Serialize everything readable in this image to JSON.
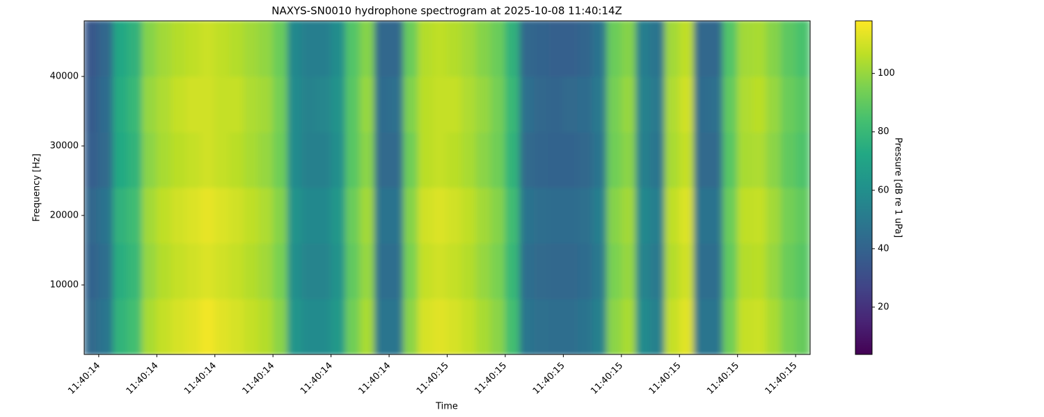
{
  "chart_data": {
    "type": "heatmap",
    "title": "NAXYS-SN0010 hydrophone spectrogram at 2025-10-08 11:40:14Z",
    "xlabel": "Time",
    "ylabel": "Frequency [Hz]",
    "colorbar_label": "Pressure [dB re 1 uPa]",
    "colormap": "viridis",
    "x": [
      14.375,
      14.4,
      14.425,
      14.45,
      14.475,
      14.5,
      14.525,
      14.55,
      14.575,
      14.6,
      14.625,
      14.65,
      14.675,
      14.7,
      14.725,
      14.75,
      14.775,
      14.8,
      14.825,
      14.85,
      14.875,
      14.9,
      14.925,
      14.95,
      14.975,
      15,
      15.025,
      15.05,
      15.075,
      15.1,
      15.125,
      15.15,
      15.175,
      15.2,
      15.225,
      15.25,
      15.275,
      15.3,
      15.325,
      15.35,
      15.375,
      15.4,
      15.425,
      15.45,
      15.475,
      15.5,
      15.525,
      15.55,
      15.575,
      15.6,
      15.625
    ],
    "y": [
      0,
      8000,
      16000,
      24000,
      32000,
      40000,
      48000
    ],
    "z": [
      [
        43,
        48,
        78,
        83,
        103,
        108,
        111,
        113,
        116,
        113,
        111,
        108,
        105,
        98,
        63,
        58,
        58,
        65,
        93,
        103,
        48,
        48,
        98,
        111,
        113,
        111,
        108,
        103,
        98,
        83,
        48,
        46,
        45,
        45,
        47,
        53,
        98,
        103,
        58,
        53,
        108,
        113,
        48,
        48,
        93,
        108,
        109,
        103,
        95,
        91
      ],
      [
        40,
        45,
        75,
        80,
        100,
        105,
        108,
        110,
        112,
        110,
        108,
        105,
        102,
        95,
        60,
        55,
        55,
        62,
        90,
        100,
        45,
        45,
        95,
        108,
        110,
        108,
        105,
        100,
        95,
        80,
        45,
        43,
        42,
        42,
        44,
        50,
        95,
        100,
        55,
        50,
        105,
        110,
        45,
        45,
        90,
        105,
        106,
        100,
        92,
        88
      ],
      [
        42,
        47,
        77,
        82,
        102,
        107,
        110,
        112,
        114,
        112,
        110,
        107,
        104,
        97,
        62,
        57,
        57,
        64,
        92,
        102,
        47,
        47,
        97,
        110,
        112,
        110,
        107,
        102,
        97,
        82,
        47,
        45,
        44,
        44,
        46,
        52,
        97,
        102,
        57,
        52,
        107,
        112,
        47,
        47,
        92,
        107,
        108,
        102,
        94,
        90
      ],
      [
        38,
        43,
        73,
        78,
        98,
        103,
        106,
        108,
        110,
        108,
        106,
        103,
        100,
        93,
        58,
        53,
        53,
        60,
        88,
        98,
        43,
        43,
        93,
        106,
        108,
        106,
        103,
        98,
        93,
        78,
        43,
        41,
        40,
        40,
        42,
        48,
        93,
        98,
        53,
        48,
        103,
        108,
        43,
        43,
        88,
        103,
        104,
        98,
        90,
        86
      ],
      [
        37,
        44,
        74,
        80,
        100,
        104,
        108,
        110,
        110,
        108,
        108,
        104,
        102,
        94,
        58,
        54,
        56,
        62,
        88,
        100,
        44,
        46,
        96,
        106,
        108,
        108,
        104,
        100,
        94,
        80,
        46,
        42,
        41,
        43,
        44,
        50,
        94,
        100,
        54,
        50,
        104,
        110,
        44,
        46,
        90,
        104,
        106,
        100,
        92,
        88
      ],
      [
        35,
        42,
        72,
        77,
        97,
        102,
        105,
        107,
        109,
        107,
        105,
        102,
        99,
        92,
        57,
        52,
        52,
        59,
        87,
        97,
        42,
        42,
        92,
        105,
        107,
        105,
        102,
        97,
        92,
        77,
        42,
        40,
        39,
        39,
        41,
        47,
        92,
        97,
        52,
        47,
        102,
        107,
        42,
        42,
        87,
        102,
        103,
        97,
        89,
        85
      ]
    ],
    "xlim": [
      14.375,
      15.625
    ],
    "ylim": [
      0,
      48000
    ],
    "clim": [
      3.8,
      118
    ],
    "xticks": [
      {
        "value": 14.4,
        "label": "11:40:14"
      },
      {
        "value": 14.5,
        "label": "11:40:14"
      },
      {
        "value": 14.6,
        "label": "11:40:14"
      },
      {
        "value": 14.7,
        "label": "11:40:14"
      },
      {
        "value": 14.8,
        "label": "11:40:14"
      },
      {
        "value": 14.9,
        "label": "11:40:14"
      },
      {
        "value": 15.0,
        "label": "11:40:15"
      },
      {
        "value": 15.1,
        "label": "11:40:15"
      },
      {
        "value": 15.2,
        "label": "11:40:15"
      },
      {
        "value": 15.3,
        "label": "11:40:15"
      },
      {
        "value": 15.4,
        "label": "11:40:15"
      },
      {
        "value": 15.5,
        "label": "11:40:15"
      },
      {
        "value": 15.6,
        "label": "11:40:15"
      }
    ],
    "yticks": [
      10000,
      20000,
      30000,
      40000
    ],
    "cticks": [
      20,
      40,
      60,
      80,
      100
    ]
  }
}
